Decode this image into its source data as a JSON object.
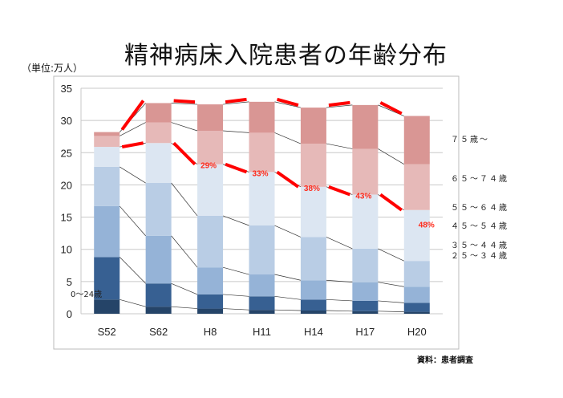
{
  "chart_data": {
    "type": "bar",
    "stacked": true,
    "title": "精神病床入院患者の年齢分布",
    "unit_label": "（単位:万人）",
    "source": "資料：患者調査",
    "categories": [
      "S52",
      "S62",
      "H8",
      "H11",
      "H14",
      "H17",
      "H20"
    ],
    "ylim": [
      0,
      35
    ],
    "yticks": [
      0,
      5,
      10,
      15,
      20,
      25,
      30,
      35
    ],
    "grid": true,
    "legend_placement": "right",
    "series": [
      {
        "name": "0〜24歳",
        "color": "#254468",
        "values": [
          2.2,
          1.1,
          0.8,
          0.6,
          0.5,
          0.4,
          0.3
        ]
      },
      {
        "name": "２５～３４歳",
        "color": "#376092",
        "values": [
          6.6,
          3.6,
          2.2,
          2.1,
          1.7,
          1.6,
          1.4
        ]
      },
      {
        "name": "３５～４４歳",
        "color": "#95b3d7",
        "values": [
          7.9,
          7.4,
          4.2,
          3.4,
          3.0,
          2.9,
          2.5
        ]
      },
      {
        "name": "４５～５４歳",
        "color": "#b9cde5",
        "values": [
          6.1,
          8.2,
          8.0,
          7.6,
          6.7,
          5.2,
          4.0
        ]
      },
      {
        "name": "５５～６４歳",
        "color": "#dce6f2",
        "values": [
          3.1,
          6.2,
          8.0,
          8.3,
          7.8,
          8.4,
          7.9
        ]
      },
      {
        "name": "６５～７４歳",
        "color": "#e6b9b8",
        "values": [
          1.7,
          3.2,
          5.2,
          6.1,
          6.7,
          7.1,
          7.1
        ]
      },
      {
        "name": "７５歳～",
        "color": "#d99694",
        "values": [
          0.6,
          3.0,
          4.1,
          4.8,
          5.6,
          6.8,
          7.5
        ]
      }
    ],
    "annotations": {
      "elderly_share_labels": [
        "",
        "",
        "29%",
        "33%",
        "38%",
        "43%",
        "48%"
      ],
      "highlight_color": "#ff0000"
    }
  }
}
